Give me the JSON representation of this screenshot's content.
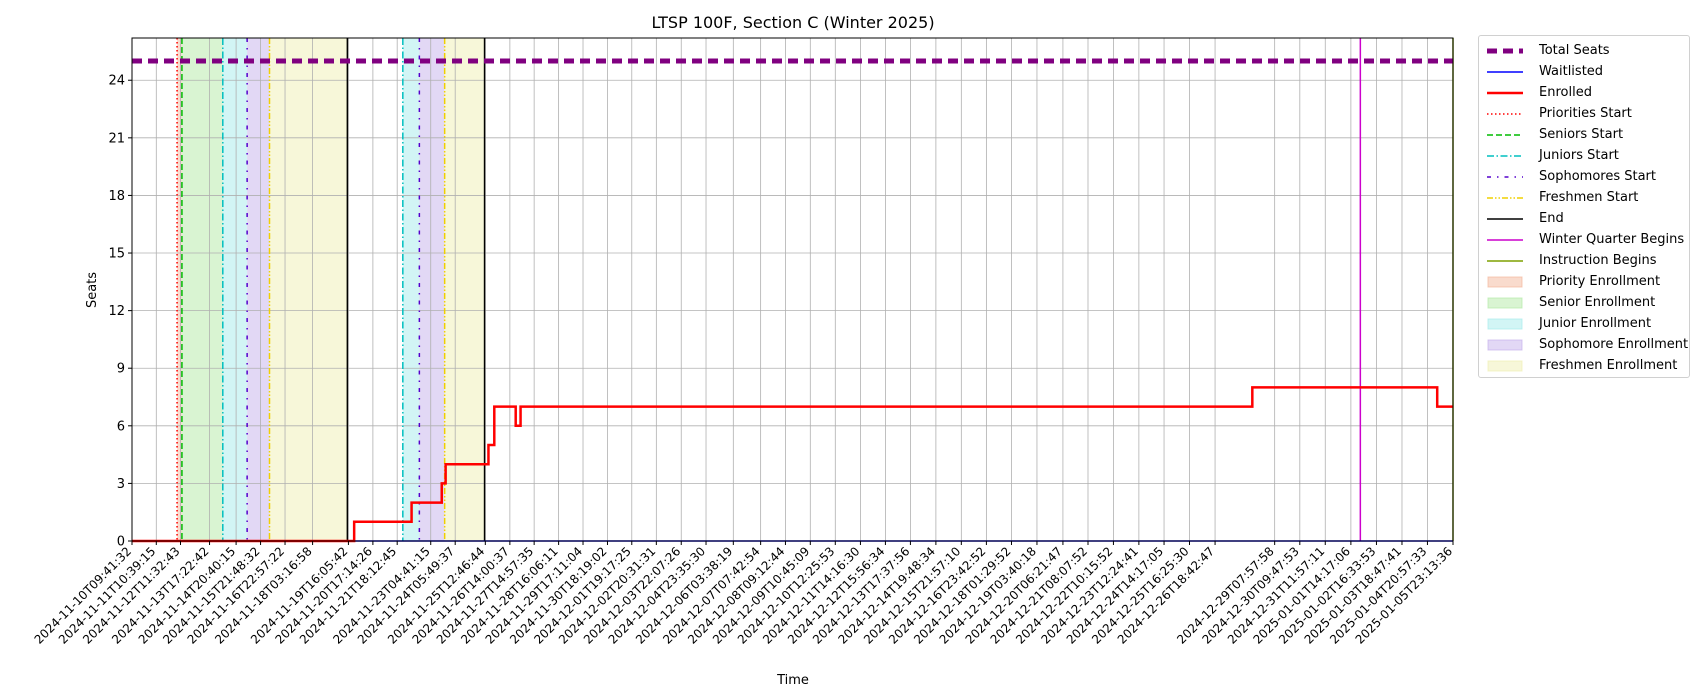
{
  "chart_data": {
    "type": "line",
    "title": "LTSP 100F, Section C (Winter 2025)",
    "xlabel": "Time",
    "ylabel": "Seats",
    "x_start": "2024-11-10T09:41:32",
    "x_end": "2025-01-05T23:13:36",
    "ylim": [
      0,
      26.2
    ],
    "yticks": [
      0,
      3,
      6,
      9,
      12,
      15,
      18,
      21,
      24
    ],
    "grid": true,
    "legend_position": "outside-right",
    "xtick_labels": [
      "2024-11-10T09:41:32",
      "2024-11-11T10:39:15",
      "2024-11-12T11:32:43",
      "2024-11-13T17:22:42",
      "2024-11-14T20:40:15",
      "2024-11-15T21:48:32",
      "2024-11-16T22:57:22",
      "2024-11-18T03:16:58",
      "2024-11-19T16:05:42",
      "2024-11-20T17:14:26",
      "2024-11-21T18:12:45",
      "2024-11-23T04:41:15",
      "2024-11-24T05:49:37",
      "2024-11-25T12:46:44",
      "2024-11-26T14:00:37",
      "2024-11-27T14:57:35",
      "2024-11-28T16:06:11",
      "2024-11-29T17:11:04",
      "2024-11-30T18:19:02",
      "2024-12-01T19:17:25",
      "2024-12-02T20:31:31",
      "2024-12-03T22:07:26",
      "2024-12-04T23:35:30",
      "2024-12-06T03:38:19",
      "2024-12-07T07:42:54",
      "2024-12-08T09:12:44",
      "2024-12-09T10:45:09",
      "2024-12-10T12:25:53",
      "2024-12-11T14:16:30",
      "2024-12-12T15:56:34",
      "2024-12-13T17:37:56",
      "2024-12-14T19:48:34",
      "2024-12-15T21:57:10",
      "2024-12-16T23:42:52",
      "2024-12-18T01:29:52",
      "2024-12-19T03:40:18",
      "2024-12-20T06:21:47",
      "2024-12-21T08:07:52",
      "2024-12-22T10:15:52",
      "2024-12-23T12:24:41",
      "2024-12-24T14:17:05",
      "2024-12-25T16:25:30",
      "2024-12-26T18:42:47",
      "2024-12-29T07:57:58",
      "2024-12-30T09:47:53",
      "2024-12-31T11:57:11",
      "2025-01-01T14:17:06",
      "2025-01-02T16:33:53",
      "2025-01-03T18:47:41",
      "2025-01-04T20:57:33",
      "2025-01-05T23:13:36"
    ],
    "series": [
      {
        "name": "Total Seats",
        "color": "#800080",
        "style": "dashed-thick",
        "points": [
          [
            "2024-11-10T09:41:32",
            25
          ],
          [
            "2025-01-05T23:13:36",
            25
          ]
        ]
      },
      {
        "name": "Waitlisted",
        "color": "#0000ff",
        "style": "solid",
        "points": [
          [
            "2024-11-10T09:41:32",
            0
          ],
          [
            "2025-01-05T23:13:36",
            0
          ]
        ]
      },
      {
        "name": "Enrolled",
        "color": "#ff0000",
        "style": "step",
        "points": [
          [
            "2024-11-10T09:41:32",
            0
          ],
          [
            "2024-11-19T22:00:00",
            0
          ],
          [
            "2024-11-19T22:00:00",
            1
          ],
          [
            "2024-11-22T09:00:00",
            1
          ],
          [
            "2024-11-22T09:00:00",
            2
          ],
          [
            "2024-11-23T16:00:00",
            2
          ],
          [
            "2024-11-23T16:00:00",
            3
          ],
          [
            "2024-11-23T20:00:00",
            3
          ],
          [
            "2024-11-23T20:00:00",
            4
          ],
          [
            "2024-11-25T16:00:00",
            4
          ],
          [
            "2024-11-25T16:00:00",
            5
          ],
          [
            "2024-11-25T22:00:00",
            5
          ],
          [
            "2024-11-25T22:00:00",
            7
          ],
          [
            "2024-11-26T20:00:00",
            7
          ],
          [
            "2024-11-26T20:00:00",
            6
          ],
          [
            "2024-11-27T01:00:00",
            6
          ],
          [
            "2024-11-27T01:00:00",
            7
          ],
          [
            "2024-12-28T09:00:00",
            7
          ],
          [
            "2024-12-28T09:00:00",
            8
          ],
          [
            "2025-01-05T07:00:00",
            8
          ],
          [
            "2025-01-05T07:00:00",
            7
          ],
          [
            "2025-01-05T23:13:36",
            7
          ]
        ]
      }
    ],
    "event_lines": [
      {
        "name": "Priorities Start",
        "color": "#ff0000",
        "style": "dotted",
        "times": [
          "2024-11-12T08:00:00"
        ]
      },
      {
        "name": "Seniors Start",
        "color": "#00bb00",
        "style": "dashed",
        "times": [
          "2024-11-12T13:00:00"
        ]
      },
      {
        "name": "Juniors Start",
        "color": "#00bfbf",
        "style": "dashdot",
        "times": [
          "2024-11-14T07:00:00",
          "2024-11-22T00:00:00"
        ]
      },
      {
        "name": "Sophomores Start",
        "color": "#5500cc",
        "style": "loose-dashdot",
        "times": [
          "2024-11-15T08:00:00",
          "2024-11-22T17:00:00"
        ]
      },
      {
        "name": "Freshmen Start",
        "color": "#f0d000",
        "style": "dashdotdot",
        "times": [
          "2024-11-16T07:00:00",
          "2024-11-23T19:00:00"
        ]
      },
      {
        "name": "End",
        "color": "#000000",
        "style": "solid",
        "times": [
          "2024-11-19T15:00:00",
          "2024-11-25T12:00:00"
        ]
      },
      {
        "name": "Winter Quarter Begins",
        "color": "#cc00cc",
        "style": "solid",
        "times": [
          "2025-01-02T00:00:00"
        ]
      },
      {
        "name": "Instruction Begins",
        "color": "#7fa000",
        "style": "solid",
        "times": [
          "2025-01-05T23:13:36"
        ]
      }
    ],
    "spans": [
      {
        "name": "Priority Enrollment",
        "color": "#f4b89c",
        "ranges": [
          [
            "2024-11-12T08:00:00",
            "2024-11-12T13:00:00"
          ]
        ]
      },
      {
        "name": "Senior Enrollment",
        "color": "#b3eaa6",
        "ranges": [
          [
            "2024-11-12T13:00:00",
            "2024-11-14T07:00:00"
          ]
        ]
      },
      {
        "name": "Junior Enrollment",
        "color": "#a6ecec",
        "ranges": [
          [
            "2024-11-14T07:00:00",
            "2024-11-15T08:00:00"
          ],
          [
            "2024-11-22T00:00:00",
            "2024-11-22T17:00:00"
          ]
        ]
      },
      {
        "name": "Sophomore Enrollment",
        "color": "#c6b1ec",
        "ranges": [
          [
            "2024-11-15T08:00:00",
            "2024-11-16T07:00:00"
          ],
          [
            "2024-11-22T17:00:00",
            "2024-11-23T19:00:00"
          ]
        ]
      },
      {
        "name": "Freshmen Enrollment",
        "color": "#f0f0b4",
        "ranges": [
          [
            "2024-11-16T07:00:00",
            "2024-11-19T15:00:00"
          ],
          [
            "2024-11-23T19:00:00",
            "2024-11-25T12:00:00"
          ]
        ]
      }
    ],
    "legend": [
      {
        "label": "Total Seats",
        "kind": "line",
        "color": "#800080",
        "style": "dashed-thick"
      },
      {
        "label": "Waitlisted",
        "kind": "line",
        "color": "#0000ff",
        "style": "solid"
      },
      {
        "label": "Enrolled",
        "kind": "line",
        "color": "#ff0000",
        "style": "solid-thick"
      },
      {
        "label": "Priorities Start",
        "kind": "line",
        "color": "#ff0000",
        "style": "dotted"
      },
      {
        "label": "Seniors Start",
        "kind": "line",
        "color": "#00bb00",
        "style": "dashed"
      },
      {
        "label": "Juniors Start",
        "kind": "line",
        "color": "#00bfbf",
        "style": "dashdot"
      },
      {
        "label": "Sophomores Start",
        "kind": "line",
        "color": "#5500cc",
        "style": "loose-dashdot"
      },
      {
        "label": "Freshmen Start",
        "kind": "line",
        "color": "#f0d000",
        "style": "dashdotdot"
      },
      {
        "label": "End",
        "kind": "line",
        "color": "#000000",
        "style": "solid"
      },
      {
        "label": "Winter Quarter Begins",
        "kind": "line",
        "color": "#cc00cc",
        "style": "solid"
      },
      {
        "label": "Instruction Begins",
        "kind": "line",
        "color": "#7fa000",
        "style": "solid"
      },
      {
        "label": "Priority Enrollment",
        "kind": "patch",
        "color": "#f4b89c"
      },
      {
        "label": "Senior Enrollment",
        "kind": "patch",
        "color": "#b3eaa6"
      },
      {
        "label": "Junior Enrollment",
        "kind": "patch",
        "color": "#a6ecec"
      },
      {
        "label": "Sophomore Enrollment",
        "kind": "patch",
        "color": "#c6b1ec"
      },
      {
        "label": "Freshmen Enrollment",
        "kind": "patch",
        "color": "#f0f0b4"
      }
    ]
  }
}
